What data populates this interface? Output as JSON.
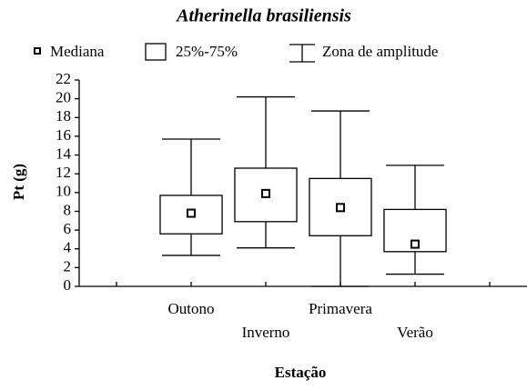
{
  "chart_data": {
    "type": "box",
    "title": "Atherinella brasiliensis",
    "legend_labels": [
      "Mediana",
      "25%-75%",
      "Zona de amplitude"
    ],
    "ylabel": "Pt (g)",
    "xlabel": "Estação",
    "categories": [
      "Outono",
      "Inverno",
      "Primavera",
      "Verão"
    ],
    "median": [
      7.8,
      9.9,
      8.4,
      4.5
    ],
    "q1": [
      5.6,
      6.9,
      5.4,
      3.7
    ],
    "q3": [
      9.7,
      12.6,
      11.5,
      8.2
    ],
    "min": [
      3.3,
      4.1,
      0,
      1.3
    ],
    "max": [
      15.7,
      20.2,
      18.7,
      12.9
    ],
    "color": "#000000",
    "ylim": [
      0,
      22
    ],
    "yticks": [
      0,
      2,
      4,
      6,
      8,
      10,
      12,
      14,
      16,
      18,
      20,
      22
    ],
    "grid": false
  }
}
